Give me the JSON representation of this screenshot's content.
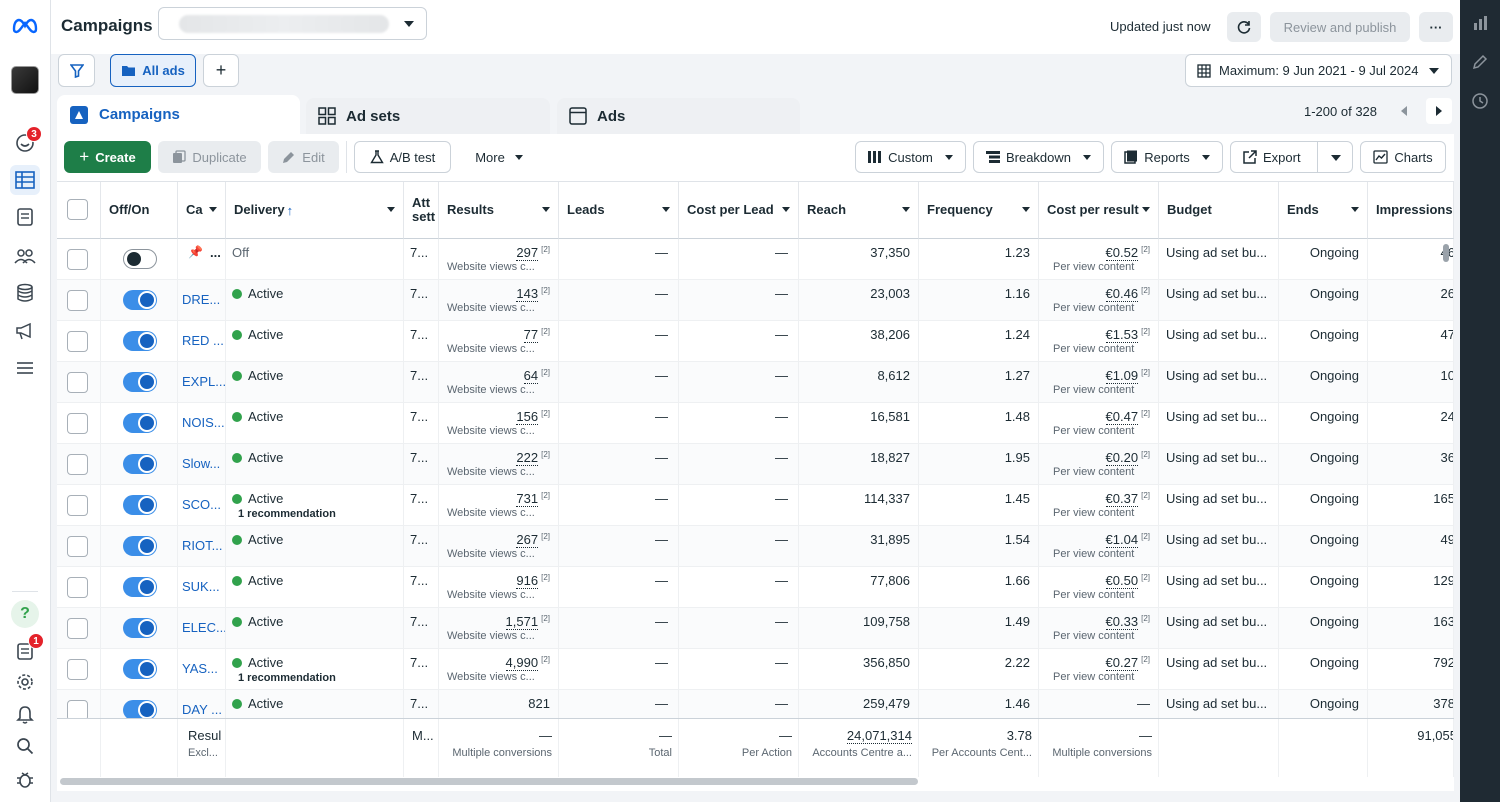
{
  "header": {
    "title": "Campaigns",
    "updated": "Updated just now",
    "review_publish": "Review and publish",
    "more": "···"
  },
  "toolbar": {
    "all_ads": "All ads",
    "add": "+",
    "date_range": "Maximum: 9 Jun 2021 - 9 Jul 2024"
  },
  "tabs": [
    {
      "label": "Campaigns"
    },
    {
      "label": "Ad sets"
    },
    {
      "label": "Ads"
    }
  ],
  "pagination": "1-200 of 328",
  "actions": {
    "create": "Create",
    "duplicate": "Duplicate",
    "edit": "Edit",
    "ab_test": "A/B test",
    "more": "More",
    "custom": "Custom",
    "breakdown": "Breakdown",
    "reports": "Reports",
    "export": "Export",
    "charts": "Charts"
  },
  "nav": {
    "notifications_badge": "3",
    "help": "?",
    "alerts_badge": "1"
  },
  "columns": [
    "Off/On",
    "Ca",
    "Delivery",
    "Att sett",
    "Results",
    "Leads",
    "Cost per Lead",
    "Reach",
    "Frequency",
    "Cost per result",
    "Budget",
    "Ends",
    "Impressions"
  ],
  "rows": [
    {
      "on": false,
      "name": "",
      "pinned": true,
      "delivery": "Off",
      "rec": "",
      "attr": "7...",
      "results": "297",
      "results_sub": "Website views c...",
      "leads": "—",
      "cpl": "—",
      "reach": "37,350",
      "freq": "1.23",
      "cpr": "€0.52",
      "cpr_sub": "Per view content",
      "budget": "Using ad set bu...",
      "ends": "Ongoing",
      "impr": "46"
    },
    {
      "on": true,
      "name": "DRE...",
      "pinned": false,
      "delivery": "Active",
      "rec": "",
      "attr": "7...",
      "results": "143",
      "results_sub": "Website views c...",
      "leads": "—",
      "cpl": "—",
      "reach": "23,003",
      "freq": "1.16",
      "cpr": "€0.46",
      "cpr_sub": "Per view content",
      "budget": "Using ad set bu...",
      "ends": "Ongoing",
      "impr": "26"
    },
    {
      "on": true,
      "name": "RED ...",
      "pinned": false,
      "delivery": "Active",
      "rec": "",
      "attr": "7...",
      "results": "77",
      "results_sub": "Website views c...",
      "leads": "—",
      "cpl": "—",
      "reach": "38,206",
      "freq": "1.24",
      "cpr": "€1.53",
      "cpr_sub": "Per view content",
      "budget": "Using ad set bu...",
      "ends": "Ongoing",
      "impr": "47"
    },
    {
      "on": true,
      "name": "EXPL...",
      "pinned": false,
      "delivery": "Active",
      "rec": "",
      "attr": "7...",
      "results": "64",
      "results_sub": "Website views c...",
      "leads": "—",
      "cpl": "—",
      "reach": "8,612",
      "freq": "1.27",
      "cpr": "€1.09",
      "cpr_sub": "Per view content",
      "budget": "Using ad set bu...",
      "ends": "Ongoing",
      "impr": "10"
    },
    {
      "on": true,
      "name": "NOIS...",
      "pinned": false,
      "delivery": "Active",
      "rec": "",
      "attr": "7...",
      "results": "156",
      "results_sub": "Website views c...",
      "leads": "—",
      "cpl": "—",
      "reach": "16,581",
      "freq": "1.48",
      "cpr": "€0.47",
      "cpr_sub": "Per view content",
      "budget": "Using ad set bu...",
      "ends": "Ongoing",
      "impr": "24"
    },
    {
      "on": true,
      "name": "Slow...",
      "pinned": false,
      "delivery": "Active",
      "rec": "",
      "attr": "7...",
      "results": "222",
      "results_sub": "Website views c...",
      "leads": "—",
      "cpl": "—",
      "reach": "18,827",
      "freq": "1.95",
      "cpr": "€0.20",
      "cpr_sub": "Per view content",
      "budget": "Using ad set bu...",
      "ends": "Ongoing",
      "impr": "36"
    },
    {
      "on": true,
      "name": "SCO...",
      "pinned": false,
      "delivery": "Active",
      "rec": "1 recommendation",
      "attr": "7...",
      "results": "731",
      "results_sub": "Website views c...",
      "leads": "—",
      "cpl": "—",
      "reach": "114,337",
      "freq": "1.45",
      "cpr": "€0.37",
      "cpr_sub": "Per view content",
      "budget": "Using ad set bu...",
      "ends": "Ongoing",
      "impr": "165"
    },
    {
      "on": true,
      "name": "RIOT...",
      "pinned": false,
      "delivery": "Active",
      "rec": "",
      "attr": "7...",
      "results": "267",
      "results_sub": "Website views c...",
      "leads": "—",
      "cpl": "—",
      "reach": "31,895",
      "freq": "1.54",
      "cpr": "€1.04",
      "cpr_sub": "Per view content",
      "budget": "Using ad set bu...",
      "ends": "Ongoing",
      "impr": "49"
    },
    {
      "on": true,
      "name": "SUK...",
      "pinned": false,
      "delivery": "Active",
      "rec": "",
      "attr": "7...",
      "results": "916",
      "results_sub": "Website views c...",
      "leads": "—",
      "cpl": "—",
      "reach": "77,806",
      "freq": "1.66",
      "cpr": "€0.50",
      "cpr_sub": "Per view content",
      "budget": "Using ad set bu...",
      "ends": "Ongoing",
      "impr": "129"
    },
    {
      "on": true,
      "name": "ELEC...",
      "pinned": false,
      "delivery": "Active",
      "rec": "",
      "attr": "7...",
      "results": "1,571",
      "results_sub": "Website views c...",
      "leads": "—",
      "cpl": "—",
      "reach": "109,758",
      "freq": "1.49",
      "cpr": "€0.33",
      "cpr_sub": "Per view content",
      "budget": "Using ad set bu...",
      "ends": "Ongoing",
      "impr": "163"
    },
    {
      "on": true,
      "name": "YAS...",
      "pinned": false,
      "delivery": "Active",
      "rec": "1 recommendation",
      "attr": "7...",
      "results": "4,990",
      "results_sub": "Website views c...",
      "leads": "—",
      "cpl": "—",
      "reach": "356,850",
      "freq": "2.22",
      "cpr": "€0.27",
      "cpr_sub": "Per view content",
      "budget": "Using ad set bu...",
      "ends": "Ongoing",
      "impr": "792"
    },
    {
      "on": true,
      "name": "DAY ...",
      "pinned": false,
      "delivery": "Active",
      "rec": "",
      "attr": "7...",
      "results": "821",
      "results_sub": "",
      "leads": "—",
      "cpl": "—",
      "reach": "259,479",
      "freq": "1.46",
      "cpr": "—",
      "cpr_sub": "",
      "budget": "Using ad set bu...",
      "ends": "Ongoing",
      "impr": "378"
    }
  ],
  "totals": {
    "label": "Resul",
    "label_sub": "Excl...",
    "attr": "M...",
    "results": "—",
    "results_sub": "Multiple conversions",
    "leads": "—",
    "leads_sub": "Total",
    "cpl": "—",
    "cpl_sub": "Per Action",
    "reach": "24,071,314",
    "reach_sub": "Accounts Centre a...",
    "freq": "3.78",
    "freq_sub": "Per Accounts Cent...",
    "cpr": "—",
    "cpr_sub": "Multiple conversions",
    "impr": "91,055"
  }
}
